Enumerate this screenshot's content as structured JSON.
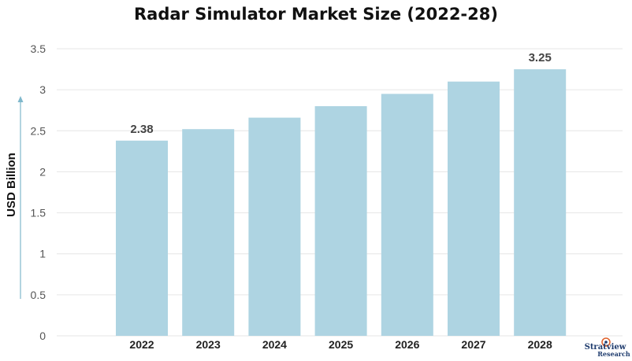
{
  "chart_data": {
    "type": "bar",
    "title": "Radar Simulator Market Size (2022-28)",
    "xlabel": "",
    "ylabel": "USD Billion",
    "categories": [
      "2022",
      "2023",
      "2024",
      "2025",
      "2026",
      "2027",
      "2028"
    ],
    "values": [
      2.38,
      2.52,
      2.66,
      2.8,
      2.95,
      3.1,
      3.25
    ],
    "data_labels": {
      "0": "2.38",
      "6": "3.25"
    },
    "ylim": [
      0,
      3.5
    ],
    "yticks": [
      "0",
      "0.5",
      "1",
      "1.5",
      "2",
      "2.5",
      "3",
      "3.5"
    ],
    "grid": true,
    "bar_color": "#aed4e2",
    "grid_color": "#e6e6e6",
    "axis_arrow_color": "#7fb8cc"
  },
  "logo": {
    "line1": "Stratview",
    "line2": "Research"
  }
}
